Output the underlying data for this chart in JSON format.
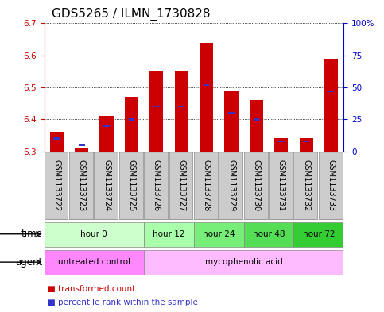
{
  "title": "GDS5265 / ILMN_1730828",
  "samples": [
    "GSM1133722",
    "GSM1133723",
    "GSM1133724",
    "GSM1133725",
    "GSM1133726",
    "GSM1133727",
    "GSM1133728",
    "GSM1133729",
    "GSM1133730",
    "GSM1133731",
    "GSM1133732",
    "GSM1133733"
  ],
  "transformed_count": [
    6.36,
    6.31,
    6.41,
    6.47,
    6.55,
    6.55,
    6.64,
    6.49,
    6.46,
    6.34,
    6.34,
    6.59
  ],
  "percentile_rank": [
    10,
    5,
    20,
    25,
    35,
    35,
    52,
    30,
    25,
    8,
    8,
    47
  ],
  "ylim_left": [
    6.3,
    6.7
  ],
  "ylim_right": [
    0,
    100
  ],
  "yticks_left": [
    6.3,
    6.4,
    6.5,
    6.6,
    6.7
  ],
  "yticks_right": [
    0,
    25,
    50,
    75,
    100
  ],
  "ytick_labels_right": [
    "0",
    "25",
    "50",
    "75",
    "100%"
  ],
  "bar_bottom": 6.3,
  "bar_color": "#cc0000",
  "percentile_color": "#3333cc",
  "grid_color": "#000000",
  "time_groups": [
    {
      "label": "hour 0",
      "start": 0,
      "end": 4,
      "color": "#ccffcc"
    },
    {
      "label": "hour 12",
      "start": 4,
      "end": 6,
      "color": "#aaffaa"
    },
    {
      "label": "hour 24",
      "start": 6,
      "end": 8,
      "color": "#77ee77"
    },
    {
      "label": "hour 48",
      "start": 8,
      "end": 10,
      "color": "#55dd55"
    },
    {
      "label": "hour 72",
      "start": 10,
      "end": 12,
      "color": "#33cc33"
    }
  ],
  "agent_groups": [
    {
      "label": "untreated control",
      "start": 0,
      "end": 4,
      "color": "#ff88ff"
    },
    {
      "label": "mycophenolic acid",
      "start": 4,
      "end": 12,
      "color": "#ffbbff"
    }
  ],
  "time_row_label": "time",
  "agent_row_label": "agent",
  "legend_items": [
    {
      "label": "transformed count",
      "color": "#cc0000"
    },
    {
      "label": "percentile rank within the sample",
      "color": "#3333cc"
    }
  ],
  "title_fontsize": 11,
  "tick_fontsize": 7.5,
  "label_fontsize": 8.5,
  "sample_fontsize": 7,
  "bar_width": 0.55,
  "bg_color": "#ffffff",
  "plot_bg": "#ffffff",
  "left_tick_color": "#cc0000",
  "right_tick_color": "#0000cc",
  "sample_box_color": "#cccccc",
  "sample_box_edge": "#888888"
}
